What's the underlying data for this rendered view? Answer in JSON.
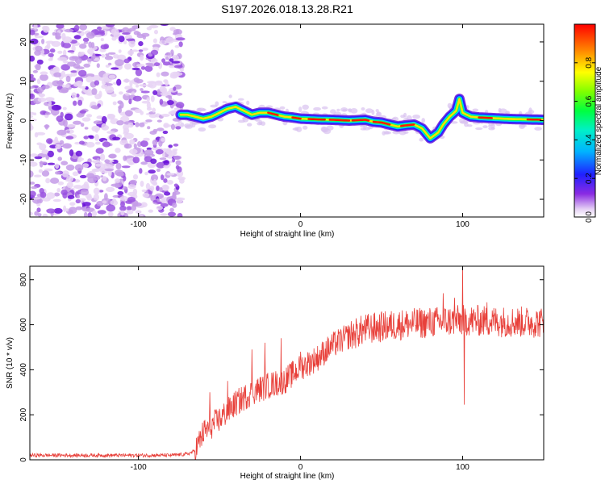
{
  "title": "S197.2026.018.13.28.R21",
  "chart_data": [
    {
      "type": "heatmap",
      "name": "spectrogram",
      "xlabel": "Height of straight line (km)",
      "ylabel": "Frequency (Hz)",
      "xlim": [
        -167,
        150
      ],
      "ylim": [
        -24.5,
        24.5
      ],
      "xticks": [
        -100,
        0,
        100
      ],
      "xtick_labels": [
        "-100",
        "0",
        "100"
      ],
      "yticks": [
        -20,
        -10,
        0,
        10,
        20
      ],
      "ytick_labels": [
        "-20",
        "-10",
        "0",
        "10",
        "20"
      ],
      "noise_region_x": [
        -167,
        -73
      ],
      "ridge": {
        "x": [
          -74,
          -70,
          -65,
          -60,
          -55,
          -50,
          -45,
          -40,
          -35,
          -30,
          -25,
          -20,
          -15,
          -10,
          -5,
          0,
          10,
          20,
          30,
          40,
          45,
          50,
          55,
          60,
          65,
          70,
          75,
          80,
          85,
          88,
          92,
          96,
          98,
          100,
          105,
          110,
          120,
          130,
          140,
          150
        ],
        "y": [
          1.5,
          1.5,
          1.0,
          0.5,
          1.0,
          2.0,
          3.0,
          3.5,
          2.5,
          1.5,
          2.0,
          2.0,
          1.5,
          1.0,
          0.8,
          0.5,
          0.3,
          0.2,
          0.0,
          0.2,
          -0.3,
          -0.5,
          -1.0,
          -1.5,
          -1.2,
          -1.0,
          -2.0,
          -4.5,
          -3.0,
          -1.0,
          1.0,
          2.5,
          5.5,
          2.0,
          1.0,
          0.8,
          0.6,
          0.4,
          0.3,
          0.2
        ]
      },
      "colorbar": {
        "label": "Normalized spectral amplitude",
        "range": [
          0,
          1
        ],
        "ticks": [
          0.0,
          0.2,
          0.4,
          0.6,
          0.8
        ],
        "tick_labels": [
          "0.0",
          "0.2",
          "0.4",
          "0.6",
          "0.8"
        ]
      }
    },
    {
      "type": "line",
      "name": "snr",
      "xlabel": "Height of straight line (km)",
      "ylabel": "SNR (10 * v/v)",
      "xlim": [
        -167,
        150
      ],
      "ylim": [
        0,
        860
      ],
      "xticks": [
        -100,
        0,
        100
      ],
      "xtick_labels": [
        "-100",
        "0",
        "100"
      ],
      "yticks": [
        0,
        200,
        400,
        600,
        800
      ],
      "ytick_labels": [
        "0",
        "200",
        "400",
        "600",
        "800"
      ],
      "color": "#e8403a",
      "trend": {
        "x": [
          -167,
          -80,
          -70,
          -65,
          -60,
          -50,
          -40,
          -30,
          -20,
          -10,
          0,
          10,
          20,
          30,
          40,
          60,
          80,
          100,
          120,
          150
        ],
        "y": [
          20,
          20,
          25,
          40,
          120,
          180,
          250,
          300,
          330,
          350,
          410,
          450,
          510,
          550,
          580,
          600,
          610,
          620,
          615,
          610
        ]
      },
      "spikes": [
        {
          "x": -56,
          "y": 300
        },
        {
          "x": -45,
          "y": 350
        },
        {
          "x": -30,
          "y": 490
        },
        {
          "x": -22,
          "y": 520
        },
        {
          "x": -12,
          "y": 540
        },
        {
          "x": 0,
          "y": 480
        },
        {
          "x": 88,
          "y": 740
        },
        {
          "x": 100,
          "y": 860
        },
        {
          "x": 101,
          "y": 245
        },
        {
          "x": 95,
          "y": 720
        },
        {
          "x": 115,
          "y": 700
        }
      ],
      "noise_amplitude": [
        8,
        60,
        70
      ]
    }
  ]
}
